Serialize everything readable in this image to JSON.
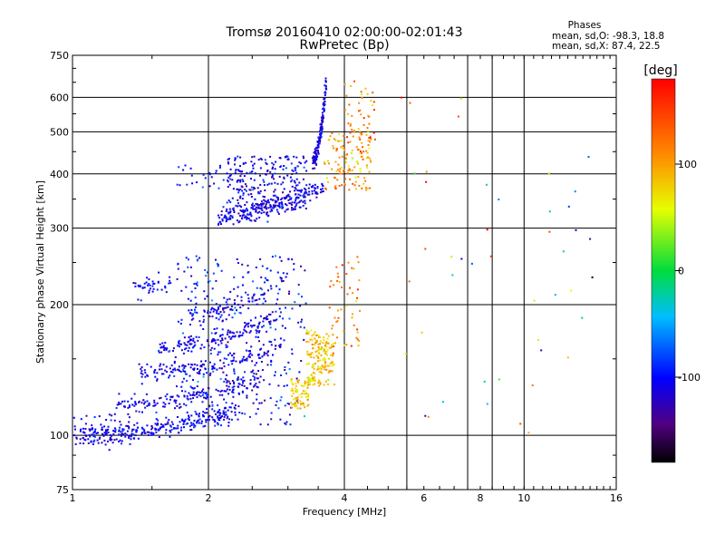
{
  "chart_data": {
    "type": "scatter",
    "title": "Tromsø 20160410 02:00:00-02:01:43",
    "subtitle": "RwPretec (Bp)",
    "xlabel": "Frequency [MHz]",
    "ylabel": "Stationary phase Virtual Height [km]",
    "x_scale": "log",
    "y_scale": "log",
    "xlim": [
      1,
      16
    ],
    "ylim": [
      75,
      750
    ],
    "x_ticks": [
      1,
      2,
      4,
      6,
      8,
      10,
      16
    ],
    "x_gridlines": [
      2,
      4,
      5.5,
      7.5,
      8.5,
      10
    ],
    "y_ticks": [
      75,
      100,
      200,
      300,
      400,
      500,
      600,
      750
    ],
    "grid": true,
    "stats": {
      "heading": "Phases",
      "o_mode": "mean, sd,O: -98.3, 18.8",
      "x_mode": "mean, sd,X: 87.4, 22.5"
    },
    "colorbar": {
      "label": "[deg]",
      "range": [
        -180,
        180
      ],
      "ticks": [
        100,
        0,
        -100
      ]
    },
    "clusters": [
      {
        "kind": "trace",
        "x0": 1.05,
        "x1": 2.3,
        "y0": 100,
        "y1": 115,
        "n": 260,
        "phase": -105,
        "sd": 14
      },
      {
        "kind": "trace",
        "x0": 1.25,
        "x1": 2.6,
        "y0": 118,
        "y1": 135,
        "n": 160,
        "phase": -108,
        "sd": 14
      },
      {
        "kind": "trace",
        "x0": 1.4,
        "x1": 2.9,
        "y0": 140,
        "y1": 160,
        "n": 160,
        "phase": -110,
        "sd": 15
      },
      {
        "kind": "trace",
        "x0": 1.55,
        "x1": 2.9,
        "y0": 160,
        "y1": 190,
        "n": 150,
        "phase": -112,
        "sd": 15
      },
      {
        "kind": "trace",
        "x0": 1.8,
        "x1": 3.0,
        "y0": 190,
        "y1": 230,
        "n": 90,
        "phase": -105,
        "sd": 15
      },
      {
        "kind": "trace",
        "x0": 1.35,
        "x1": 1.65,
        "y0": 220,
        "y1": 225,
        "n": 40,
        "phase": -100,
        "sd": 12
      },
      {
        "kind": "blob",
        "x0": 1.7,
        "x1": 3.3,
        "y0": 105,
        "y1": 260,
        "n": 320,
        "phase": -100,
        "sd": 22
      },
      {
        "kind": "blob",
        "x0": 1.0,
        "x1": 1.4,
        "y0": 95,
        "y1": 112,
        "n": 70,
        "phase": -110,
        "sd": 14
      },
      {
        "kind": "blob",
        "x0": 3.05,
        "x1": 3.35,
        "y0": 115,
        "y1": 135,
        "n": 70,
        "phase": 80,
        "sd": 18
      },
      {
        "kind": "blob",
        "x0": 3.3,
        "x1": 3.8,
        "y0": 130,
        "y1": 175,
        "n": 170,
        "phase": 85,
        "sd": 18
      },
      {
        "kind": "blob",
        "x0": 3.7,
        "x1": 4.4,
        "y0": 160,
        "y1": 260,
        "n": 50,
        "phase": 110,
        "sd": 25
      },
      {
        "kind": "trace",
        "x0": 2.1,
        "x1": 3.6,
        "y0": 320,
        "y1": 375,
        "n": 220,
        "phase": -110,
        "sd": 15
      },
      {
        "kind": "blob",
        "x0": 2.2,
        "x1": 3.3,
        "y0": 330,
        "y1": 440,
        "n": 260,
        "phase": -105,
        "sd": 18
      },
      {
        "kind": "trace",
        "x0": 3.4,
        "x1": 3.65,
        "y0": 430,
        "y1": 660,
        "n": 160,
        "phase": -112,
        "sd": 12
      },
      {
        "kind": "blob",
        "x0": 3.6,
        "x1": 4.6,
        "y0": 365,
        "y1": 500,
        "n": 130,
        "phase": 100,
        "sd": 22
      },
      {
        "kind": "blob",
        "x0": 4.0,
        "x1": 4.7,
        "y0": 480,
        "y1": 660,
        "n": 45,
        "phase": 120,
        "sd": 25
      },
      {
        "kind": "blob",
        "x0": 1.7,
        "x1": 2.2,
        "y0": 370,
        "y1": 420,
        "n": 25,
        "phase": -100,
        "sd": 15
      },
      {
        "kind": "blob",
        "x0": 5.0,
        "x1": 14.5,
        "y0": 100,
        "y1": 660,
        "n": 45,
        "phase": 20,
        "sd": 120
      }
    ]
  }
}
